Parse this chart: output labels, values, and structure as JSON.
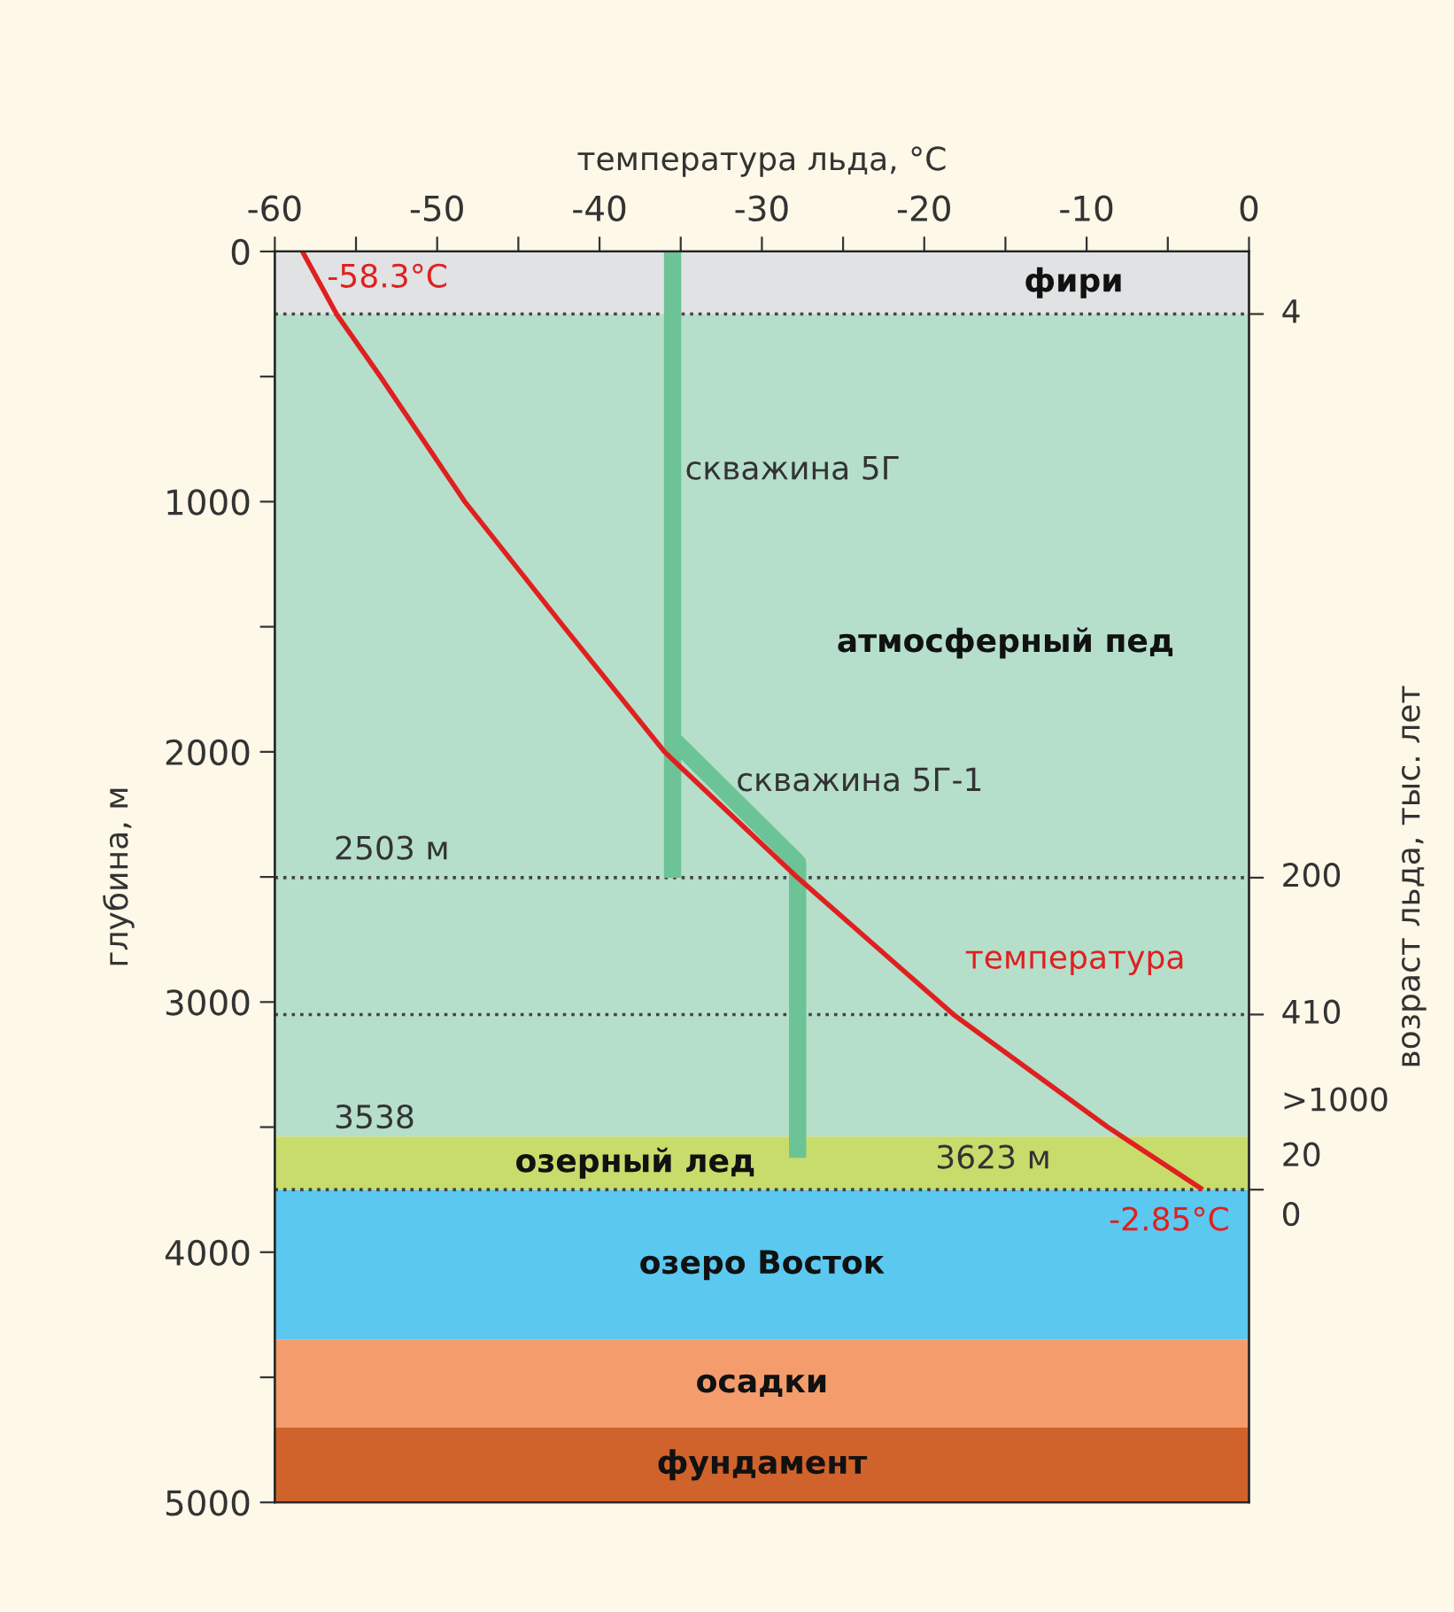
{
  "chart_data": {
    "type": "line",
    "xlabel": "температура льда, °C",
    "ylabel": "глубина, м",
    "y2label": "возраст льда, тыс. лет",
    "xlim": [
      -60,
      0
    ],
    "xticks": [
      -60,
      {
        "value": -55,
        "label": null
      },
      -50,
      {
        "value": -45,
        "label": null
      },
      -40,
      {
        "value": -35,
        "label": null
      },
      -30,
      {
        "value": -25,
        "label": null
      },
      -20,
      {
        "value": -15,
        "label": null
      },
      -10,
      {
        "value": -5,
        "label": null
      },
      0
    ],
    "ylim": [
      5000,
      0
    ],
    "yticks": [
      0,
      {
        "value": 500,
        "label": null
      },
      1000,
      {
        "value": 1500,
        "label": null
      },
      2000,
      {
        "value": 2500,
        "label": null
      },
      3000,
      {
        "value": 3500,
        "label": null
      },
      4000,
      {
        "value": 4500,
        "label": null
      },
      5000
    ],
    "bands": [
      {
        "axis": "y",
        "from": 0,
        "to": 250,
        "color": "#e0e2e3",
        "label": "фири"
      },
      {
        "axis": "y",
        "from": 250,
        "to": 3538,
        "color": "#b5dfca",
        "label": "атмосферный пед"
      },
      {
        "axis": "y",
        "from": 3538,
        "to": 3750,
        "color": "#c8dc6c",
        "label": "озерный лед"
      },
      {
        "axis": "y",
        "from": 3750,
        "to": 4350,
        "color": "#5bc8f0",
        "label": "озеро Восток"
      },
      {
        "axis": "y",
        "from": 4350,
        "to": 4700,
        "color": "#f59c6c",
        "label": "осадки"
      },
      {
        "axis": "y",
        "from": 4700,
        "to": 5000,
        "color": "#d0622c",
        "label": "фундамент"
      }
    ],
    "ref_lines": [
      {
        "axis": "y",
        "value": 250,
        "line_style": "dotted",
        "color": "#444444"
      },
      {
        "axis": "y",
        "value": 2503,
        "line_style": "dotted",
        "color": "#444444"
      },
      {
        "axis": "y",
        "value": 3050,
        "line_style": "dotted",
        "color": "#444444"
      },
      {
        "axis": "y",
        "value": 3750,
        "line_style": "dotted",
        "color": "#444444"
      }
    ],
    "series": [
      {
        "name": "скважина 5Г",
        "color": "#6cc395",
        "x": [
          -35.5,
          -35.5
        ],
        "values": [
          0,
          2503
        ]
      },
      {
        "name": "скважина 5Г-1",
        "color": "#6cc395",
        "x": [
          -35.5,
          -27.8,
          -27.8
        ],
        "values": [
          1948,
          2443,
          3623
        ]
      },
      {
        "name": "температура",
        "color": "#e02020",
        "x": [
          -58.3,
          -56.2,
          -53.5,
          -48.3,
          -42.2,
          -36.0,
          -27.8,
          -18.2,
          -8.7,
          -2.85
        ],
        "values": [
          0,
          250,
          500,
          1000,
          1500,
          2000,
          2503,
          3050,
          3500,
          3750
        ]
      }
    ],
    "annotations": [
      {
        "text": "-58.3°C",
        "x": -58.3,
        "y": 0
      },
      {
        "text": "-2.85°C",
        "x": -2.85,
        "y": 3750
      },
      {
        "text": "2503 м",
        "x": -60,
        "y": 2503
      },
      {
        "text": "3538",
        "x": -60,
        "y": 3538
      },
      "3623 м",
      {
        "text": "4",
        "x": 0,
        "y": 250
      },
      {
        "text": "200",
        "x": 0,
        "y": 2503
      },
      {
        "text": "410",
        "x": 0,
        "y": 3050
      },
      ">1000",
      "20",
      {
        "text": "0",
        "x": 0,
        "y": 3750
      }
    ]
  }
}
